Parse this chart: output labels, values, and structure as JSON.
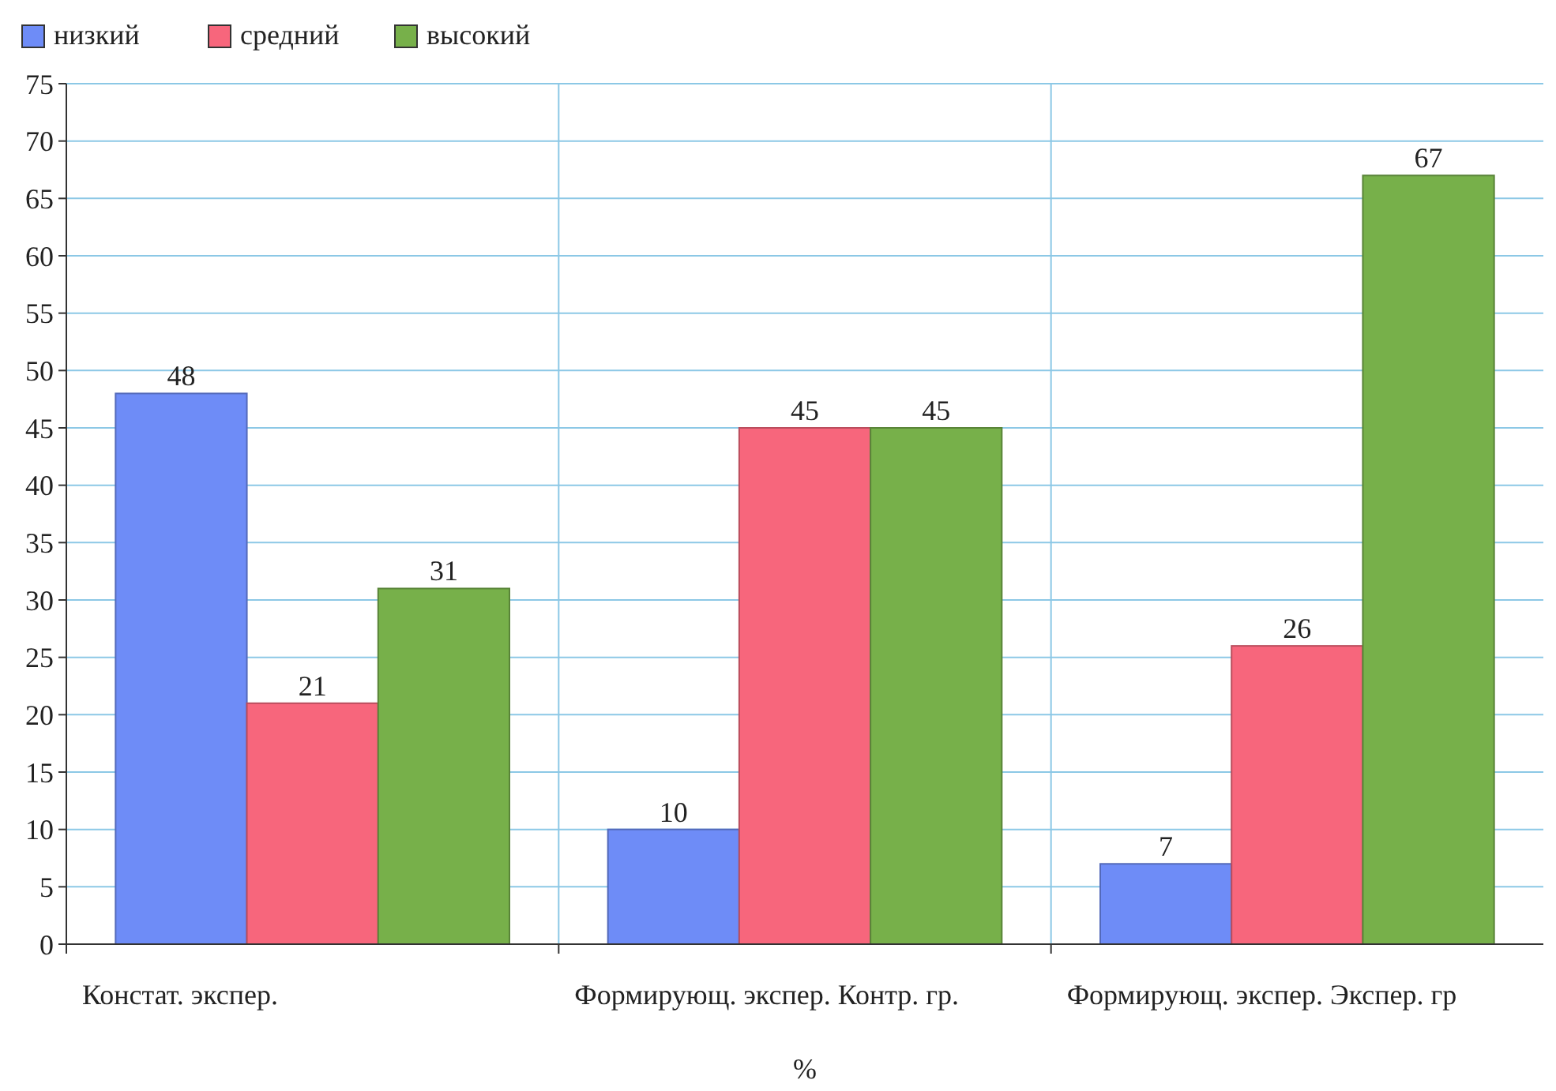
{
  "chart_data": {
    "type": "bar",
    "xlabel": "%",
    "categories": [
      "Констат. экспер.",
      "Формирующ. экспер. Контр. гр.",
      "Формирующ. экспер. Экспер. гр"
    ],
    "series": [
      {
        "name": "низкий",
        "color": "#6e8cf7",
        "values": [
          48,
          10,
          7
        ]
      },
      {
        "name": "средний",
        "color": "#f7667c",
        "values": [
          21,
          45,
          26
        ]
      },
      {
        "name": "высокий",
        "color": "#77b04a",
        "values": [
          31,
          45,
          67
        ]
      }
    ],
    "ylim": [
      0,
      75
    ],
    "yticks": [
      0,
      5,
      10,
      15,
      20,
      25,
      30,
      35,
      40,
      45,
      50,
      55,
      60,
      65,
      70,
      75
    ],
    "grid": true,
    "legend": "top left",
    "data_labels": true
  }
}
